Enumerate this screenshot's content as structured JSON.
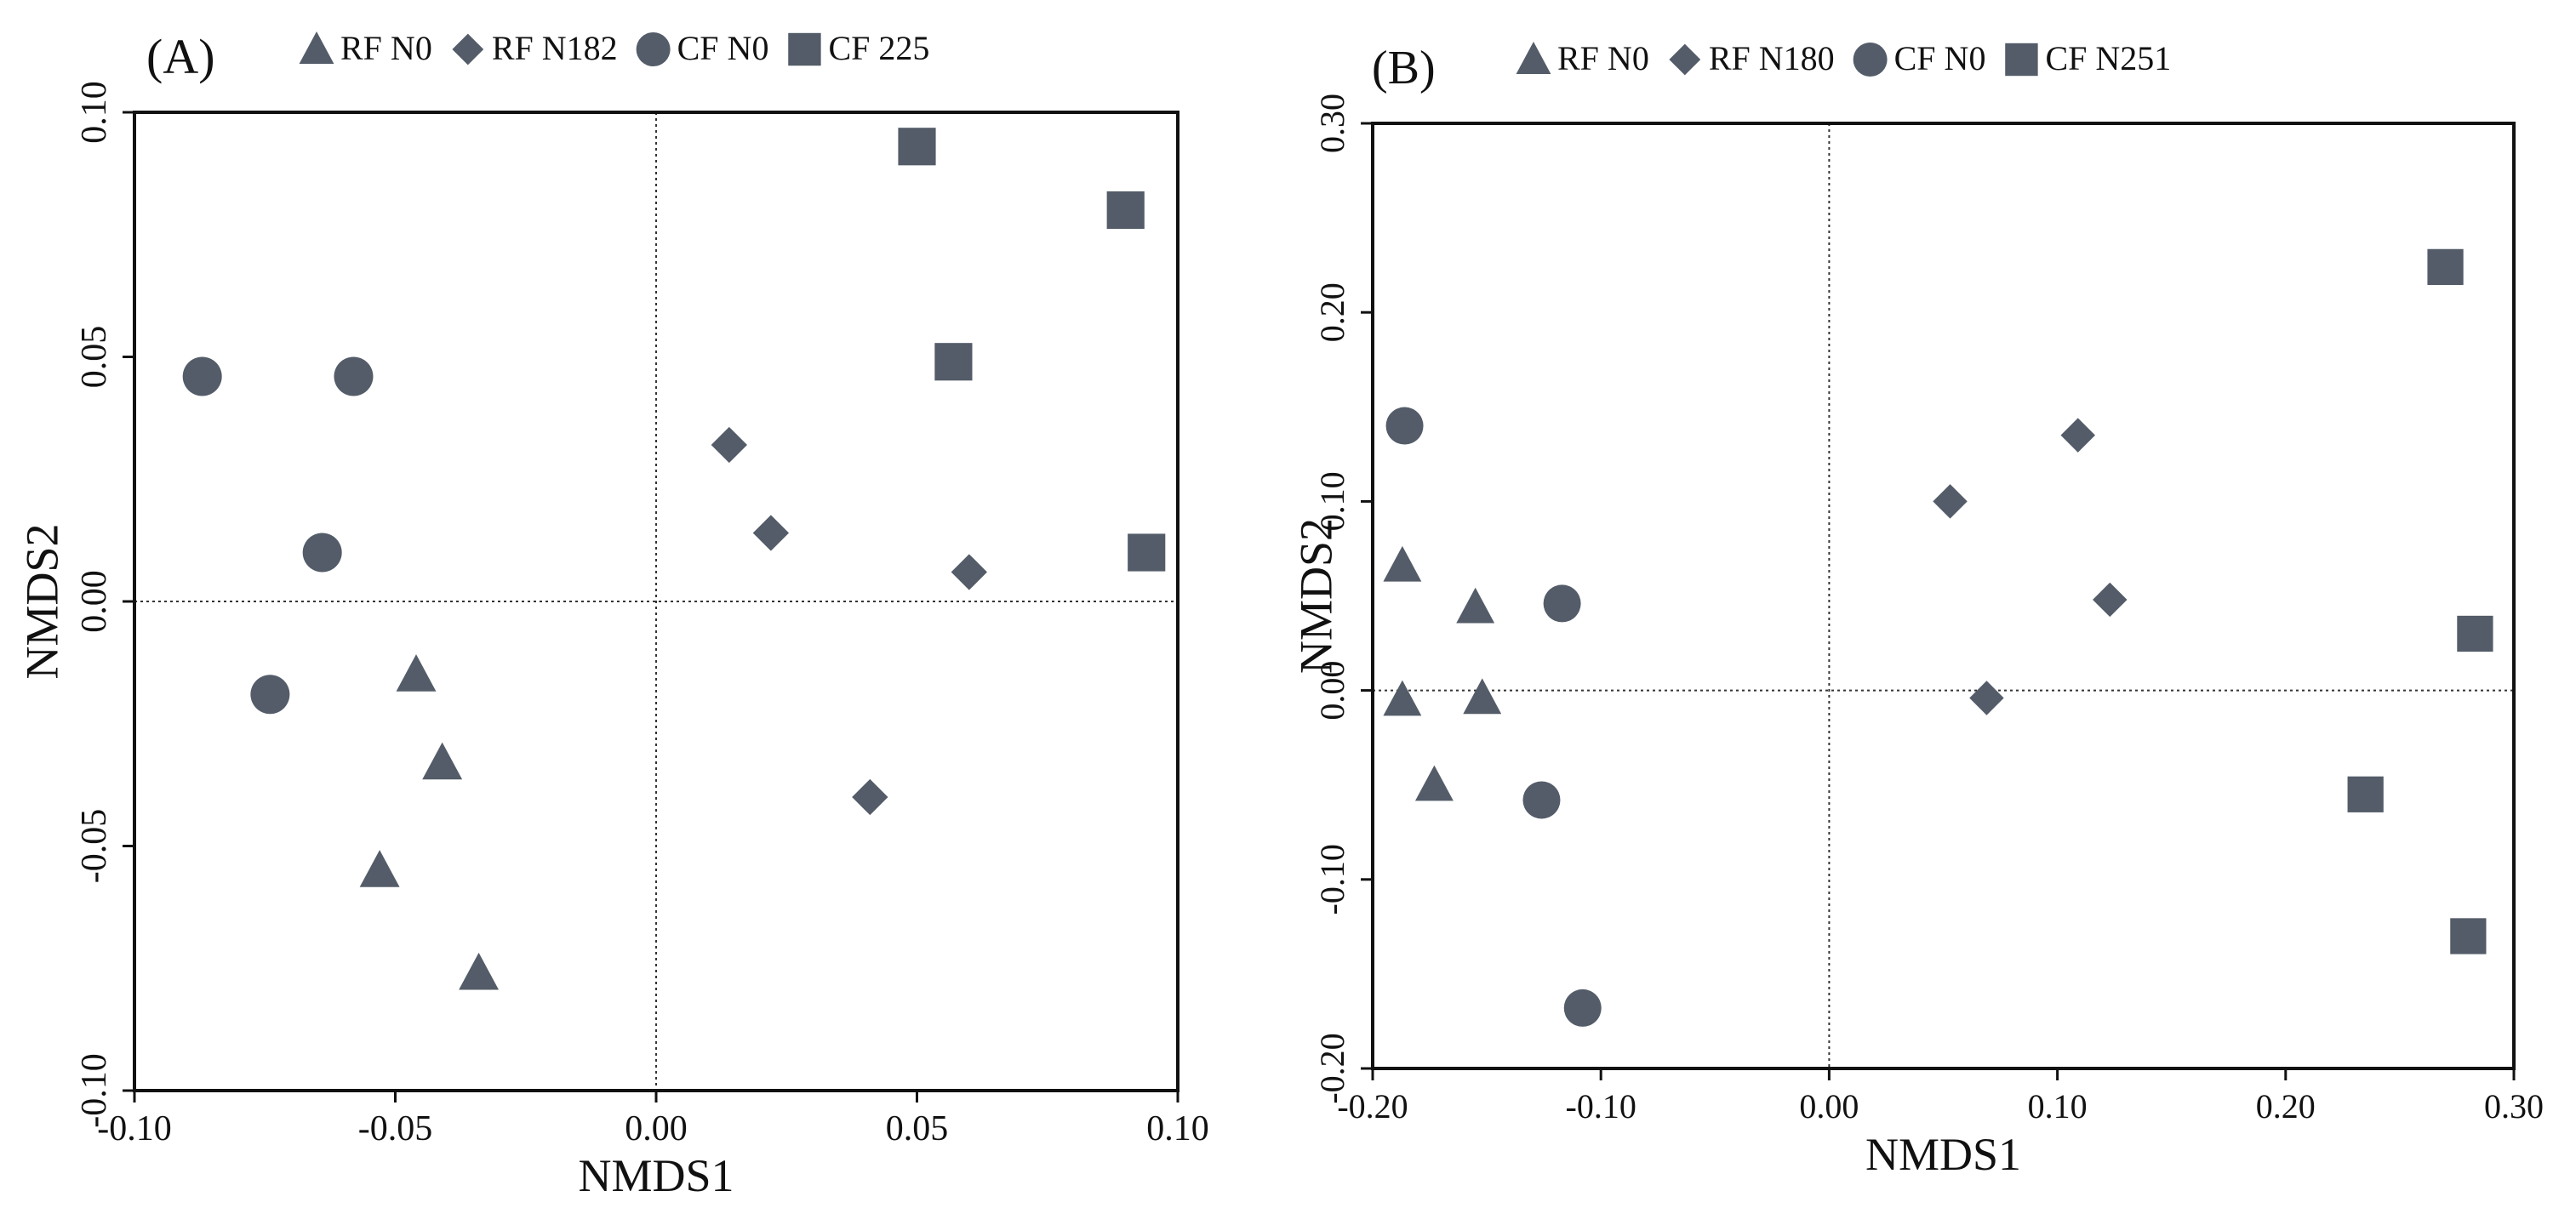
{
  "figure": {
    "marker_color": "#535c68",
    "axis_color": "#111111"
  },
  "chart_data": [
    {
      "type": "scatter",
      "panel_label": "(A)",
      "xlabel": "NMDS1",
      "ylabel": "NMDS2",
      "xlim": [
        -0.1,
        0.1
      ],
      "ylim": [
        -0.1,
        0.1
      ],
      "xticks": [
        -0.1,
        -0.05,
        0.0,
        0.05,
        0.1
      ],
      "yticks": [
        -0.1,
        -0.05,
        0.0,
        0.05,
        0.1
      ],
      "xtick_labels": [
        "-0.10",
        "-0.05",
        "0.00",
        "0.05",
        "0.10"
      ],
      "ytick_labels": [
        "-0.10",
        "-0.05",
        "0.00",
        "0.05",
        "0.10"
      ],
      "reference_lines": {
        "x": 0,
        "y": 0
      },
      "series": [
        {
          "name": "RF N0",
          "marker": "triangle",
          "x": [
            -0.046,
            -0.041,
            -0.053,
            -0.034
          ],
          "y": [
            -0.015,
            -0.033,
            -0.055,
            -0.076
          ]
        },
        {
          "name": "RF N182",
          "marker": "diamond",
          "x": [
            0.014,
            0.022,
            0.06,
            0.041
          ],
          "y": [
            0.032,
            0.014,
            0.006,
            -0.04
          ]
        },
        {
          "name": "CF N0",
          "marker": "circle",
          "x": [
            -0.087,
            -0.058,
            -0.064,
            -0.074
          ],
          "y": [
            0.046,
            0.046,
            0.01,
            -0.019
          ]
        },
        {
          "name": "CF 225",
          "marker": "square",
          "x": [
            0.05,
            0.09,
            0.057,
            0.094
          ],
          "y": [
            0.093,
            0.08,
            0.049,
            0.01
          ]
        }
      ]
    },
    {
      "type": "scatter",
      "panel_label": "(B)",
      "xlabel": "NMDS1",
      "ylabel": "NMDS2",
      "xlim": [
        -0.2,
        0.3
      ],
      "ylim": [
        -0.2,
        0.3
      ],
      "xticks": [
        -0.2,
        -0.1,
        0.0,
        0.1,
        0.2,
        0.3
      ],
      "yticks": [
        -0.2,
        -0.1,
        0.0,
        0.1,
        0.2,
        0.3
      ],
      "xtick_labels": [
        "-0.20",
        "-0.10",
        "0.00",
        "0.10",
        "0.20",
        "0.30"
      ],
      "ytick_labels": [
        "-0.20",
        "-0.10",
        "0.00",
        "0.10",
        "0.20",
        "0.30"
      ],
      "reference_lines": {
        "x": 0,
        "y": 0
      },
      "series": [
        {
          "name": "RF N0",
          "marker": "triangle",
          "x": [
            -0.187,
            -0.155,
            -0.187,
            -0.152,
            -0.173
          ],
          "y": [
            0.066,
            0.044,
            -0.005,
            -0.004,
            -0.05
          ]
        },
        {
          "name": "RF N180",
          "marker": "diamond",
          "x": [
            0.053,
            0.109,
            0.123,
            0.069
          ],
          "y": [
            0.1,
            0.135,
            0.048,
            -0.004
          ]
        },
        {
          "name": "CF N0",
          "marker": "circle",
          "x": [
            -0.186,
            -0.117,
            -0.126,
            -0.108
          ],
          "y": [
            0.14,
            0.046,
            -0.058,
            -0.168
          ]
        },
        {
          "name": "CF N251",
          "marker": "square",
          "x": [
            0.27,
            0.283,
            0.235,
            0.28
          ],
          "y": [
            0.224,
            0.03,
            -0.055,
            -0.13
          ]
        }
      ]
    }
  ]
}
